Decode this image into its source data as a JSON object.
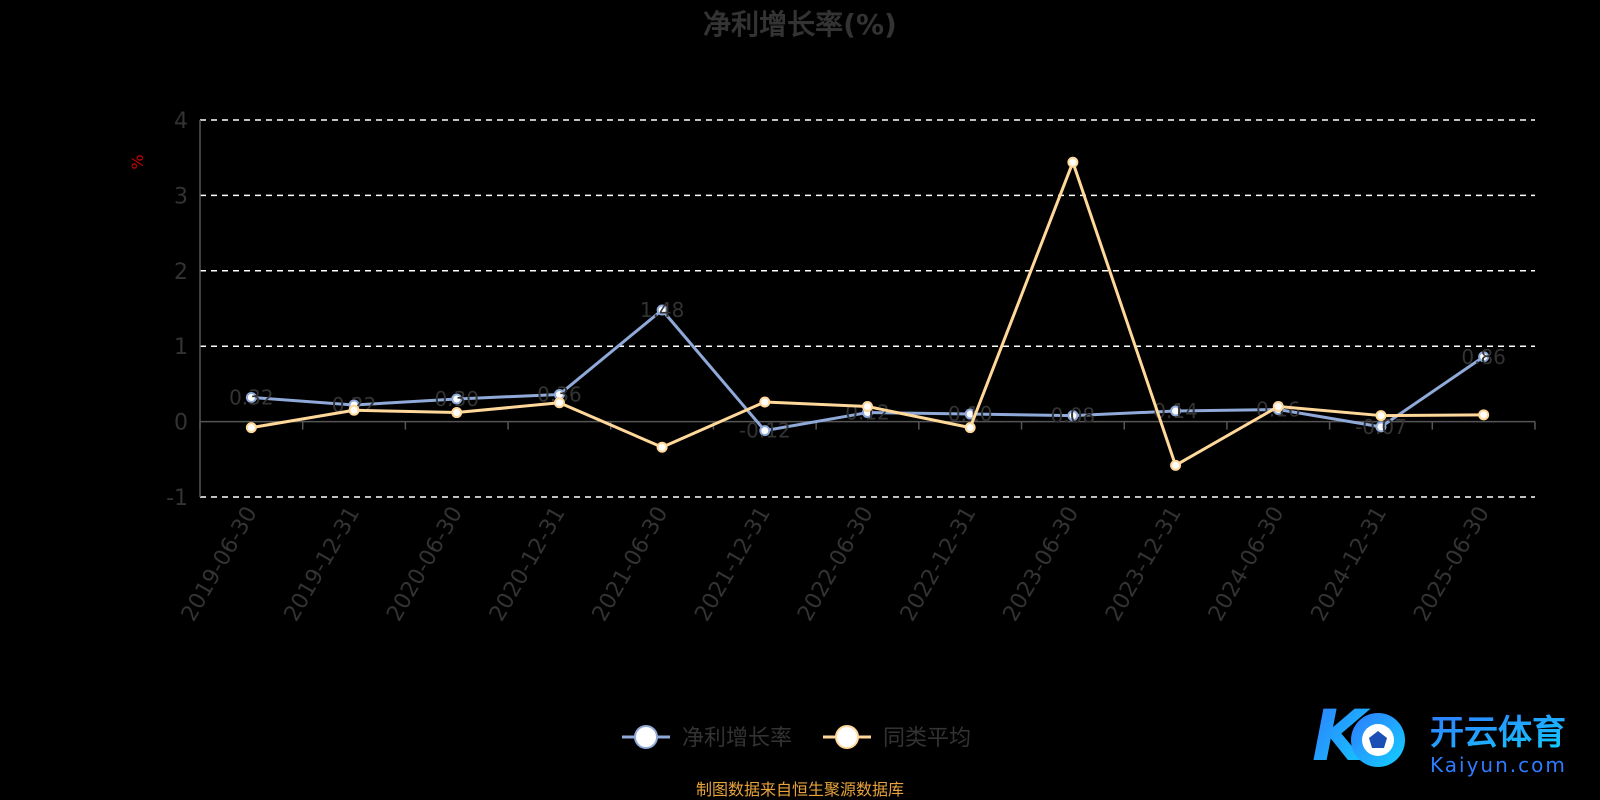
{
  "chart_data": {
    "type": "line",
    "title": "净利增长率(%)",
    "ylabel": "%",
    "ylim": [
      -1,
      4
    ],
    "yticks": [
      -1,
      0,
      1,
      2,
      3,
      4
    ],
    "grid": true,
    "legend_position": "bottom",
    "categories": [
      "2019-06-30",
      "2019-12-31",
      "2020-06-30",
      "2020-12-31",
      "2021-06-30",
      "2021-12-31",
      "2022-06-30",
      "2022-12-31",
      "2023-06-30",
      "2023-12-31",
      "2024-06-30",
      "2024-12-31",
      "2025-06-30"
    ],
    "series": [
      {
        "name": "净利增长率",
        "color": "#8fa9d8",
        "values": [
          0.32,
          0.22,
          0.3,
          0.36,
          1.48,
          -0.12,
          0.12,
          0.1,
          0.08,
          0.14,
          0.16,
          -0.07,
          0.86
        ]
      },
      {
        "name": "同类平均",
        "color": "#ffd89a",
        "values": [
          -0.08,
          0.15,
          0.12,
          0.25,
          -0.34,
          0.26,
          0.2,
          -0.08,
          3.44,
          -0.58,
          0.2,
          0.08,
          0.09
        ]
      }
    ]
  },
  "source_note": "制图数据来自恒生聚源数据库",
  "watermark": {
    "brand_cn": "开云体育",
    "brand_en": "Kaiyun.com"
  }
}
